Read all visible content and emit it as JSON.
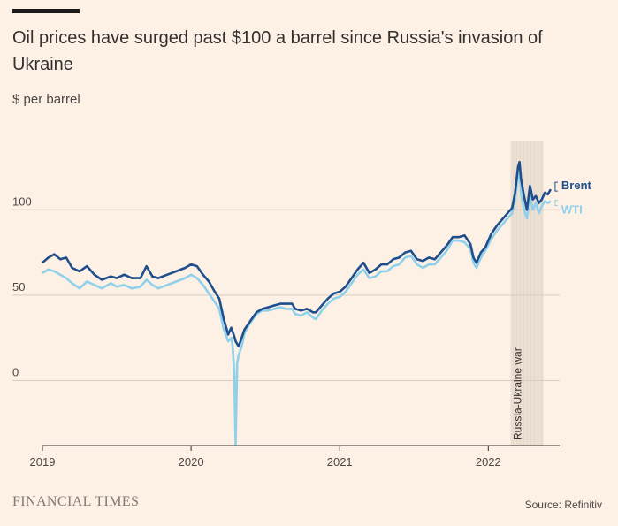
{
  "header": {
    "title": "Oil prices have surged past $100 a barrel since Russia's invasion of Ukraine",
    "subtitle": "$ per barrel"
  },
  "footer": {
    "brand": "FINANCIAL TIMES",
    "source": "Source: Refinitiv"
  },
  "chart_data": {
    "type": "line",
    "title": "Oil prices have surged past $100 a barrel since Russia's invasion of Ukraine",
    "ylabel": "$ per barrel",
    "xlabel": "",
    "ylim": [
      -38,
      140
    ],
    "xlim": [
      2019.0,
      2022.48
    ],
    "y_ticks": [
      0,
      50,
      100
    ],
    "y_tick_labels": [
      "0",
      "50",
      "100"
    ],
    "x_ticks": [
      2019,
      2020,
      2021,
      2022
    ],
    "x_tick_labels": [
      "2019",
      "2020",
      "2021",
      "2022"
    ],
    "grid": true,
    "annotation": {
      "label": "Russia-Ukraine war",
      "start": 2022.15,
      "end": 2022.37,
      "color": "#ecdfd3"
    },
    "series": [
      {
        "name": "Brent",
        "color": "#1f4e8c",
        "points": [
          [
            2019.0,
            69
          ],
          [
            2019.04,
            72
          ],
          [
            2019.08,
            74
          ],
          [
            2019.12,
            71
          ],
          [
            2019.16,
            72
          ],
          [
            2019.2,
            66
          ],
          [
            2019.25,
            64
          ],
          [
            2019.3,
            67
          ],
          [
            2019.35,
            62
          ],
          [
            2019.4,
            59
          ],
          [
            2019.46,
            61
          ],
          [
            2019.5,
            60
          ],
          [
            2019.55,
            62
          ],
          [
            2019.6,
            60
          ],
          [
            2019.66,
            60
          ],
          [
            2019.7,
            67
          ],
          [
            2019.74,
            61
          ],
          [
            2019.78,
            60
          ],
          [
            2019.84,
            62
          ],
          [
            2019.9,
            64
          ],
          [
            2019.96,
            66
          ],
          [
            2020.0,
            68
          ],
          [
            2020.04,
            67
          ],
          [
            2020.08,
            62
          ],
          [
            2020.12,
            58
          ],
          [
            2020.16,
            52
          ],
          [
            2020.19,
            48
          ],
          [
            2020.22,
            36
          ],
          [
            2020.25,
            27
          ],
          [
            2020.27,
            31
          ],
          [
            2020.29,
            26
          ],
          [
            2020.3,
            23
          ],
          [
            2020.32,
            20
          ],
          [
            2020.34,
            25
          ],
          [
            2020.36,
            30
          ],
          [
            2020.4,
            35
          ],
          [
            2020.44,
            40
          ],
          [
            2020.48,
            42
          ],
          [
            2020.52,
            43
          ],
          [
            2020.56,
            44
          ],
          [
            2020.6,
            45
          ],
          [
            2020.64,
            45
          ],
          [
            2020.68,
            45
          ],
          [
            2020.7,
            42
          ],
          [
            2020.74,
            41
          ],
          [
            2020.78,
            42
          ],
          [
            2020.82,
            40
          ],
          [
            2020.84,
            40
          ],
          [
            2020.88,
            44
          ],
          [
            2020.92,
            48
          ],
          [
            2020.96,
            51
          ],
          [
            2021.0,
            52
          ],
          [
            2021.04,
            55
          ],
          [
            2021.08,
            60
          ],
          [
            2021.12,
            65
          ],
          [
            2021.16,
            69
          ],
          [
            2021.2,
            63
          ],
          [
            2021.24,
            65
          ],
          [
            2021.28,
            68
          ],
          [
            2021.32,
            68
          ],
          [
            2021.36,
            71
          ],
          [
            2021.4,
            72
          ],
          [
            2021.44,
            75
          ],
          [
            2021.48,
            76
          ],
          [
            2021.52,
            71
          ],
          [
            2021.56,
            70
          ],
          [
            2021.6,
            72
          ],
          [
            2021.64,
            71
          ],
          [
            2021.68,
            75
          ],
          [
            2021.72,
            79
          ],
          [
            2021.76,
            84
          ],
          [
            2021.8,
            84
          ],
          [
            2021.84,
            85
          ],
          [
            2021.88,
            80
          ],
          [
            2021.9,
            72
          ],
          [
            2021.92,
            69
          ],
          [
            2021.95,
            75
          ],
          [
            2021.98,
            78
          ],
          [
            2022.02,
            86
          ],
          [
            2022.06,
            91
          ],
          [
            2022.1,
            95
          ],
          [
            2022.14,
            99
          ],
          [
            2022.16,
            101
          ],
          [
            2022.18,
            110
          ],
          [
            2022.2,
            125
          ],
          [
            2022.21,
            128
          ],
          [
            2022.22,
            118
          ],
          [
            2022.24,
            108
          ],
          [
            2022.26,
            100
          ],
          [
            2022.28,
            114
          ],
          [
            2022.3,
            106
          ],
          [
            2022.32,
            108
          ],
          [
            2022.34,
            104
          ],
          [
            2022.36,
            106
          ],
          [
            2022.38,
            110
          ],
          [
            2022.4,
            109
          ],
          [
            2022.42,
            112
          ]
        ]
      },
      {
        "name": "WTI",
        "color": "#8fd0ea",
        "points": [
          [
            2019.0,
            63
          ],
          [
            2019.04,
            65
          ],
          [
            2019.08,
            64
          ],
          [
            2019.12,
            62
          ],
          [
            2019.16,
            60
          ],
          [
            2019.2,
            57
          ],
          [
            2019.25,
            54
          ],
          [
            2019.3,
            58
          ],
          [
            2019.35,
            56
          ],
          [
            2019.4,
            54
          ],
          [
            2019.46,
            57
          ],
          [
            2019.5,
            55
          ],
          [
            2019.55,
            56
          ],
          [
            2019.6,
            54
          ],
          [
            2019.66,
            55
          ],
          [
            2019.7,
            59
          ],
          [
            2019.74,
            56
          ],
          [
            2019.78,
            54
          ],
          [
            2019.84,
            56
          ],
          [
            2019.9,
            58
          ],
          [
            2019.96,
            60
          ],
          [
            2020.0,
            62
          ],
          [
            2020.04,
            60
          ],
          [
            2020.08,
            56
          ],
          [
            2020.12,
            51
          ],
          [
            2020.16,
            46
          ],
          [
            2020.19,
            42
          ],
          [
            2020.22,
            30
          ],
          [
            2020.25,
            23
          ],
          [
            2020.27,
            25
          ],
          [
            2020.28,
            20
          ],
          [
            2020.29,
            5
          ],
          [
            2020.3,
            -37
          ],
          [
            2020.31,
            10
          ],
          [
            2020.32,
            15
          ],
          [
            2020.34,
            20
          ],
          [
            2020.36,
            28
          ],
          [
            2020.4,
            34
          ],
          [
            2020.44,
            39
          ],
          [
            2020.48,
            41
          ],
          [
            2020.52,
            41
          ],
          [
            2020.56,
            42
          ],
          [
            2020.6,
            43
          ],
          [
            2020.64,
            42
          ],
          [
            2020.68,
            42
          ],
          [
            2020.7,
            39
          ],
          [
            2020.74,
            38
          ],
          [
            2020.78,
            40
          ],
          [
            2020.82,
            37
          ],
          [
            2020.84,
            36
          ],
          [
            2020.88,
            41
          ],
          [
            2020.92,
            45
          ],
          [
            2020.96,
            48
          ],
          [
            2021.0,
            49
          ],
          [
            2021.04,
            52
          ],
          [
            2021.08,
            57
          ],
          [
            2021.12,
            62
          ],
          [
            2021.16,
            65
          ],
          [
            2021.2,
            60
          ],
          [
            2021.24,
            61
          ],
          [
            2021.28,
            64
          ],
          [
            2021.32,
            64
          ],
          [
            2021.36,
            67
          ],
          [
            2021.4,
            68
          ],
          [
            2021.44,
            72
          ],
          [
            2021.48,
            73
          ],
          [
            2021.52,
            68
          ],
          [
            2021.56,
            66
          ],
          [
            2021.6,
            68
          ],
          [
            2021.64,
            68
          ],
          [
            2021.68,
            72
          ],
          [
            2021.72,
            76
          ],
          [
            2021.76,
            82
          ],
          [
            2021.8,
            82
          ],
          [
            2021.84,
            81
          ],
          [
            2021.88,
            77
          ],
          [
            2021.9,
            69
          ],
          [
            2021.92,
            66
          ],
          [
            2021.95,
            72
          ],
          [
            2021.98,
            76
          ],
          [
            2022.02,
            83
          ],
          [
            2022.06,
            88
          ],
          [
            2022.1,
            92
          ],
          [
            2022.14,
            96
          ],
          [
            2022.16,
            98
          ],
          [
            2022.18,
            106
          ],
          [
            2022.2,
            120
          ],
          [
            2022.21,
            123
          ],
          [
            2022.22,
            110
          ],
          [
            2022.24,
            100
          ],
          [
            2022.26,
            95
          ],
          [
            2022.28,
            108
          ],
          [
            2022.3,
            100
          ],
          [
            2022.32,
            104
          ],
          [
            2022.34,
            98
          ],
          [
            2022.36,
            102
          ],
          [
            2022.38,
            105
          ],
          [
            2022.4,
            104
          ],
          [
            2022.42,
            105
          ]
        ]
      }
    ]
  }
}
